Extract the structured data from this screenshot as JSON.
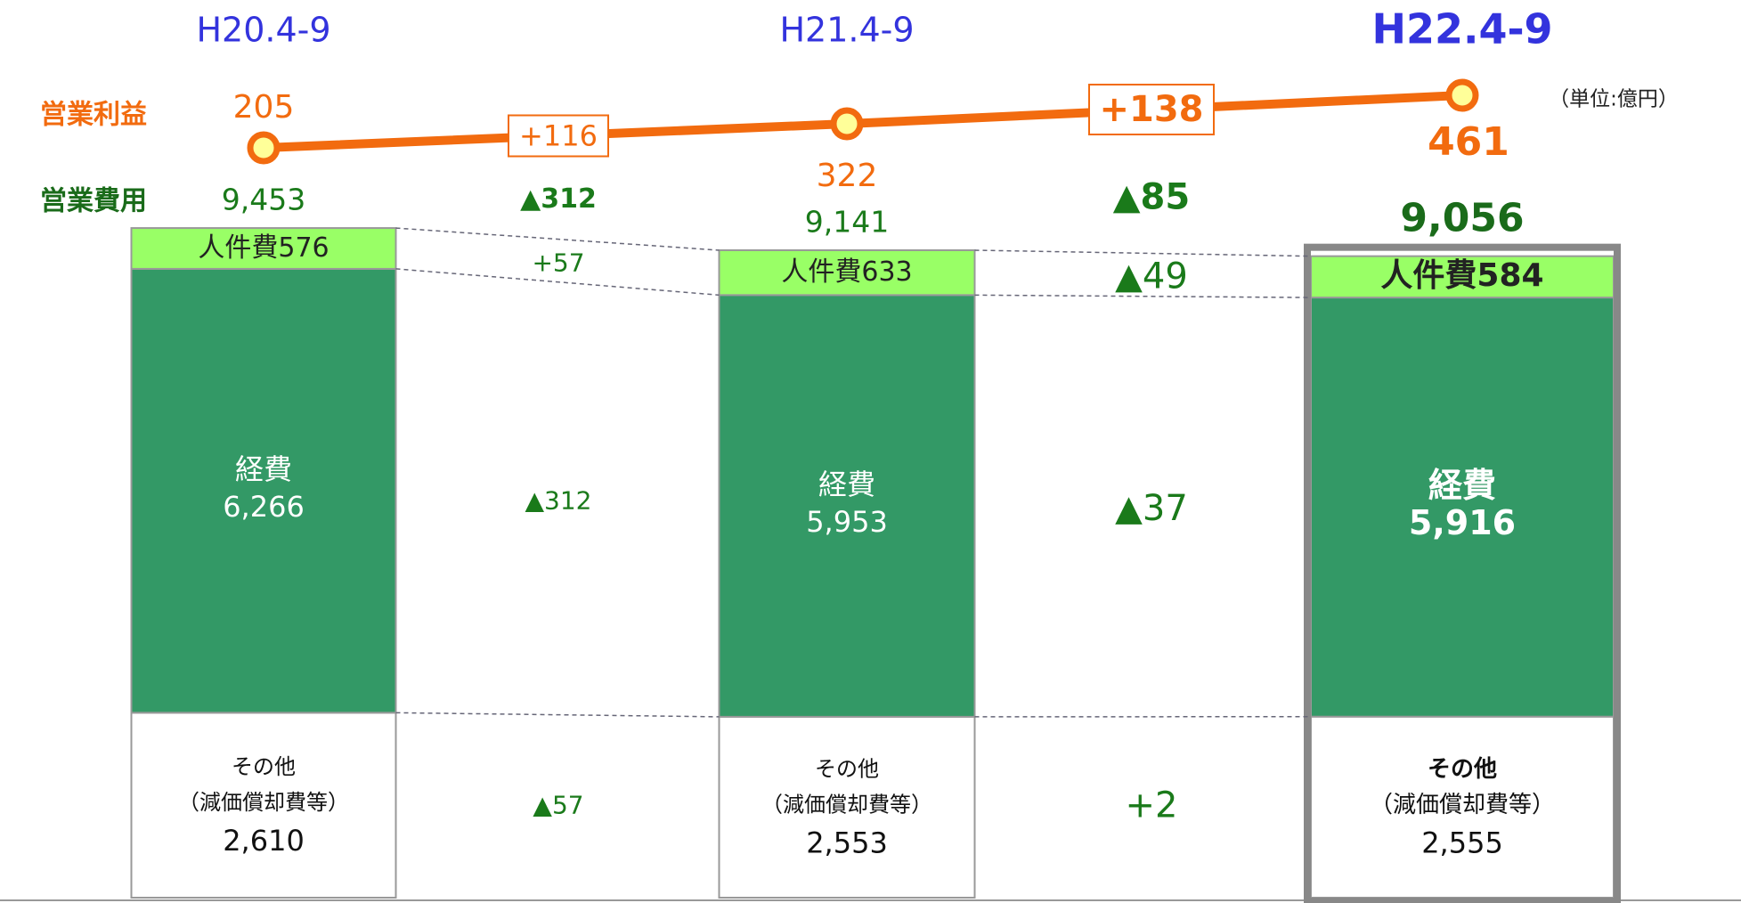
{
  "chart_data": {
    "type": "bar",
    "categories": [
      "H20.4-9",
      "H21.4-9",
      "H22.4-9"
    ],
    "unit": "（単位:億円）",
    "profit": {
      "name": "営業利益",
      "color": "#f26b0f",
      "values": [
        205,
        322,
        461
      ],
      "changes": [
        116,
        138
      ],
      "change_labels": [
        "+116",
        "+138"
      ]
    },
    "expense_name": "営業費用",
    "totals": [
      9453,
      9141,
      9056
    ],
    "total_labels": [
      "9,453",
      "9,141",
      "9,056"
    ],
    "total_changes": [
      -312,
      -85
    ],
    "total_change_labels": [
      "▲312",
      "▲85"
    ],
    "series": [
      {
        "name": "その他",
        "note": "（減価償却費等）",
        "color": "#ffffff",
        "values": [
          2610,
          2553,
          2555
        ],
        "value_labels": [
          "2,610",
          "2,553",
          "2,555"
        ],
        "changes": [
          -57,
          2
        ],
        "change_labels": [
          "▲57",
          "+2"
        ]
      },
      {
        "name": "経費",
        "color": "#339966",
        "values": [
          6266,
          5953,
          5916
        ],
        "value_labels": [
          "6,266",
          "5,953",
          "5,916"
        ],
        "changes": [
          -312,
          -37
        ],
        "change_labels": [
          "▲312",
          "▲37"
        ]
      },
      {
        "name": "人件費",
        "color": "#99ff66",
        "values": [
          576,
          633,
          584
        ],
        "changes": [
          57,
          -49
        ],
        "change_labels": [
          "+57",
          "▲49"
        ]
      }
    ]
  }
}
